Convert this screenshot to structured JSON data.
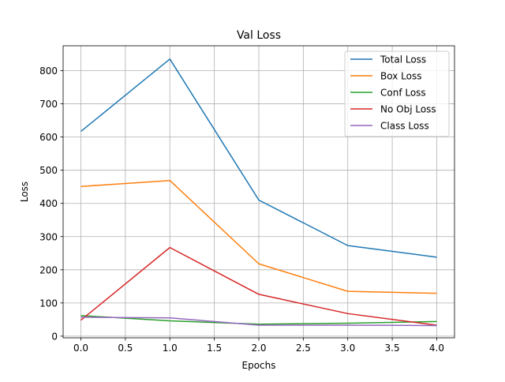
{
  "chart_data": {
    "type": "line",
    "title": "Val Loss",
    "xlabel": "Epochs",
    "ylabel": "Loss",
    "x": [
      0,
      1,
      2,
      3,
      4
    ],
    "xlim": [
      -0.2,
      4.2
    ],
    "ylim": [
      -5,
      875
    ],
    "xticks": [
      0.0,
      0.5,
      1.0,
      1.5,
      2.0,
      2.5,
      3.0,
      3.5,
      4.0
    ],
    "xtick_labels": [
      "0.0",
      "0.5",
      "1.0",
      "1.5",
      "2.0",
      "2.5",
      "3.0",
      "3.5",
      "4.0"
    ],
    "yticks": [
      0,
      100,
      200,
      300,
      400,
      500,
      600,
      700,
      800
    ],
    "ytick_labels": [
      "0",
      "100",
      "200",
      "300",
      "400",
      "500",
      "600",
      "700",
      "800"
    ],
    "grid": true,
    "legend_position": "top-right",
    "series": [
      {
        "name": "Total Loss",
        "color": "#1f77b4",
        "values": [
          617,
          835,
          410,
          273,
          238
        ]
      },
      {
        "name": "Box Loss",
        "color": "#ff7f0e",
        "values": [
          451,
          469,
          218,
          135,
          129
        ]
      },
      {
        "name": "Conf Loss",
        "color": "#2ca02c",
        "values": [
          62,
          46,
          36,
          39,
          44
        ]
      },
      {
        "name": "No Obj Loss",
        "color": "#d62728",
        "values": [
          48,
          267,
          126,
          68,
          33
        ]
      },
      {
        "name": "Class Loss",
        "color": "#9467bd",
        "values": [
          57,
          55,
          33,
          33,
          32
        ]
      }
    ]
  }
}
